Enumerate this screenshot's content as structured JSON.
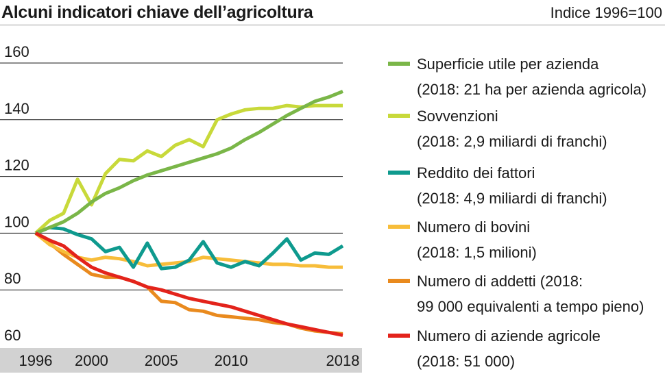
{
  "header": {
    "title": "Alcuni indicatori chiave dell’agricoltura",
    "subtitle": "Indice 1996=100"
  },
  "colors": {
    "superficie": "#7ab648",
    "sovvenzioni": "#c8d93a",
    "reddito": "#0e9a8e",
    "bovini": "#f7bd3a",
    "addetti": "#e98a1e",
    "aziende": "#e3231b",
    "grid": "#1a1a1a",
    "axis_band": "#d2d2d2"
  },
  "legend": [
    {
      "key": "superficie",
      "label": "Superficie utile per azienda",
      "note": "(2018: 21 ha per azienda agricola)"
    },
    {
      "key": "sovvenzioni",
      "label": "Sovvenzioni",
      "note": "(2018: 2,9 miliardi di franchi)"
    },
    {
      "key": "reddito",
      "label": "Reddito dei fattori",
      "note": "(2018: 4,9 miliardi di franchi)"
    },
    {
      "key": "bovini",
      "label": "Numero di bovini",
      "note": "(2018: 1,5 milioni)"
    },
    {
      "key": "addetti",
      "label": "Numero di addetti (2018:",
      "note": "99 000 equivalenti a tempo pieno)"
    },
    {
      "key": "aziende",
      "label": "Numero di aziende agricole",
      "note": "(2018: 51 000)"
    }
  ],
  "chart_data": {
    "type": "line",
    "title": "Alcuni indicatori chiave dell’agricoltura",
    "ylabel": "Indice 1996=100",
    "xlabel": "",
    "ylim": [
      60,
      160
    ],
    "xlim": [
      1996,
      2018
    ],
    "yticks": [
      "160",
      "140",
      "120",
      "100",
      "80",
      "60"
    ],
    "xticks": [
      {
        "value": 1996,
        "label": "1996"
      },
      {
        "value": 2000,
        "label": "2000"
      },
      {
        "value": 2005,
        "label": "2005"
      },
      {
        "value": 2010,
        "label": "2010"
      },
      {
        "value": 2018,
        "label": "2018"
      }
    ],
    "grid": true,
    "legend_position": "right",
    "x": [
      1996,
      1997,
      1998,
      1999,
      2000,
      2001,
      2002,
      2003,
      2004,
      2005,
      2006,
      2007,
      2008,
      2009,
      2010,
      2011,
      2012,
      2013,
      2014,
      2015,
      2016,
      2017,
      2018
    ],
    "series": [
      {
        "key": "superficie",
        "name": "Superficie utile per azienda",
        "values": [
          100,
          102,
          104,
          107,
          111,
          114,
          116,
          118.5,
          120.5,
          122,
          123.5,
          125,
          126.5,
          128,
          130,
          133,
          135.5,
          138.5,
          141.5,
          144,
          146.5,
          148,
          150
        ]
      },
      {
        "key": "sovvenzioni",
        "name": "Sovvenzioni",
        "values": [
          100,
          104.5,
          107,
          119,
          110,
          121,
          126,
          125.5,
          129,
          127,
          131,
          133,
          130.5,
          140,
          142,
          143.5,
          144,
          144,
          145,
          144.5,
          145,
          145,
          145
        ]
      },
      {
        "key": "reddito",
        "name": "Reddito dei fattori",
        "values": [
          100,
          102,
          101.5,
          99.5,
          98,
          93.5,
          95,
          88,
          96.5,
          87.5,
          88,
          90.5,
          97,
          89.5,
          88,
          90,
          88.5,
          93,
          98,
          90.5,
          93,
          92.5,
          95.5
        ]
      },
      {
        "key": "bovini",
        "name": "Numero di bovini",
        "values": [
          100,
          96,
          93.5,
          91.5,
          90.5,
          91.5,
          91,
          90,
          88.5,
          89,
          89.5,
          90,
          91.5,
          91,
          90.5,
          90,
          89.5,
          89,
          89,
          88.5,
          88.5,
          88,
          88
        ]
      },
      {
        "key": "addetti",
        "name": "Numero di addetti",
        "values": [
          100,
          96.5,
          92.5,
          89,
          85.5,
          84.5,
          84.5,
          83,
          81,
          76,
          75.5,
          73,
          72.5,
          71,
          70.5,
          70,
          69.5,
          68.5,
          68,
          66.5,
          65.5,
          65,
          64.5
        ]
      },
      {
        "key": "aziende",
        "name": "Numero di aziende agricole",
        "values": [
          100,
          97.5,
          95.5,
          91.5,
          88,
          86,
          84.5,
          83,
          81,
          80,
          78.5,
          77,
          76,
          75,
          74,
          72.5,
          71,
          69.5,
          68,
          67,
          66,
          65,
          64
        ]
      }
    ]
  }
}
